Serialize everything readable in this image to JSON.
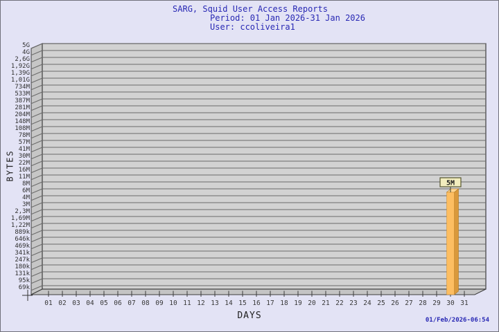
{
  "header": {
    "title": "SARG, Squid User Access Reports",
    "period": "Period: 01 Jan 2026-31 Jan 2026",
    "user": "User: ccoliveira1"
  },
  "footer": {
    "generated": "01/Feb/2026-06:54"
  },
  "chart_data": {
    "type": "bar",
    "title": "SARG, Squid User Access Reports",
    "subtitle": "Period: 01 Jan 2026-31 Jan 2026",
    "user_line": "User: ccoliveira1",
    "xlabel": "DAYS",
    "ylabel": "BYTES",
    "grid": true,
    "legend_position": "none",
    "categories": [
      "01",
      "02",
      "03",
      "04",
      "05",
      "06",
      "07",
      "08",
      "09",
      "10",
      "11",
      "12",
      "13",
      "14",
      "15",
      "16",
      "17",
      "18",
      "19",
      "20",
      "21",
      "22",
      "23",
      "24",
      "25",
      "26",
      "27",
      "28",
      "29",
      "30",
      "31"
    ],
    "ytick_labels": [
      "5G",
      "4G",
      "2,6G",
      "1,92G",
      "1,39G",
      "1,01G",
      "734M",
      "533M",
      "387M",
      "281M",
      "204M",
      "148M",
      "108M",
      "78M",
      "57M",
      "41M",
      "30M",
      "22M",
      "16M",
      "11M",
      "8M",
      "6M",
      "4M",
      "3M",
      "2,3M",
      "1,69M",
      "1,22M",
      "889k",
      "646k",
      "469k",
      "341k",
      "247k",
      "180k",
      "131k",
      "95k",
      "69k"
    ],
    "series": [
      {
        "name": "BYTES",
        "values": [
          0,
          0,
          0,
          0,
          0,
          0,
          0,
          0,
          0,
          0,
          0,
          0,
          0,
          0,
          0,
          0,
          0,
          0,
          0,
          0,
          0,
          0,
          0,
          0,
          0,
          0,
          0,
          0,
          0,
          5000000,
          0
        ]
      }
    ],
    "bars": [
      {
        "category": "30",
        "value": 5000000,
        "label": "5M"
      }
    ],
    "colors": {
      "background": "#E3E3F5",
      "plot_face": "#D2D2D2",
      "plot_wall": "#C6C6C6",
      "plot_floor": "#C4C4C4",
      "grid_line": "#6a6a6a",
      "frame_line": "#3c3c3c",
      "title_text": "#2828B4",
      "tick_text": "#2e2e2e",
      "bar_front": "#FDBE62",
      "bar_side": "#D9993C",
      "bar_top": "#FFD693",
      "annotation_bg": "#F2EDBE",
      "annotation_border": "#55552e"
    }
  }
}
